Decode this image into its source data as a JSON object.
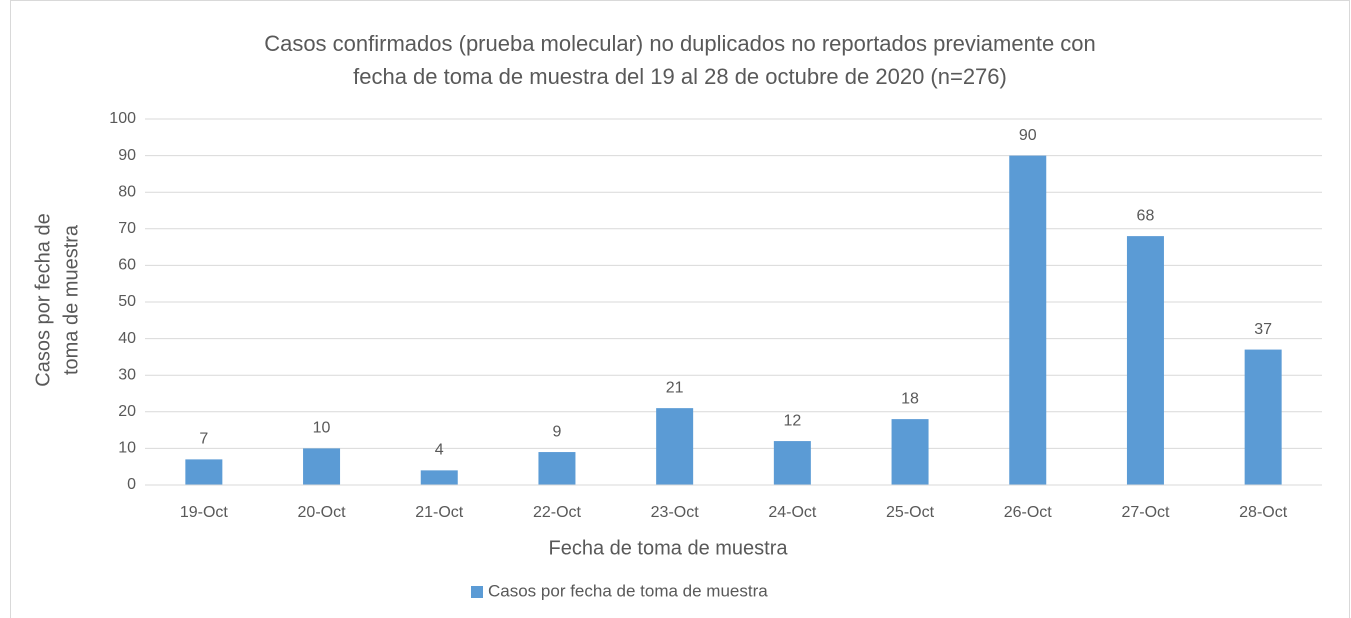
{
  "chart_data": {
    "type": "bar",
    "title": [
      "Casos confirmados (prueba molecular) no duplicados no reportados previamente con",
      "fecha de toma de muestra del 19 al 28 de octubre de 2020 (n=276)"
    ],
    "x_label": "Fecha de toma de muestra",
    "y_label": [
      "Casos por fecha de",
      "toma de muestra"
    ],
    "categories": [
      "19-Oct",
      "20-Oct",
      "21-Oct",
      "22-Oct",
      "23-Oct",
      "24-Oct",
      "25-Oct",
      "26-Oct",
      "27-Oct",
      "28-Oct"
    ],
    "series": [
      {
        "name": "Casos por fecha de toma de muestra",
        "color": "#5b9bd5",
        "values": [
          7,
          10,
          4,
          9,
          21,
          12,
          18,
          90,
          68,
          37
        ]
      }
    ],
    "ylim": [
      0,
      100
    ],
    "yticks": [
      0,
      10,
      20,
      30,
      40,
      50,
      60,
      70,
      80,
      90,
      100
    ],
    "grid": true,
    "legend": "bottom",
    "data_labels": true
  }
}
